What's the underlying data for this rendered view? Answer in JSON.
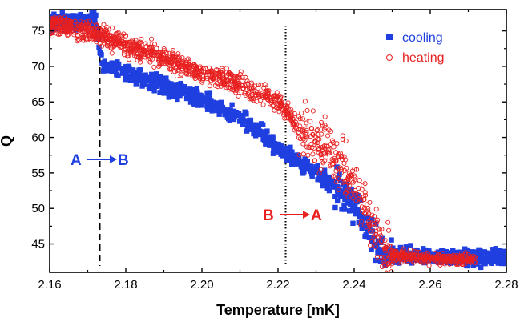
{
  "chart_data": {
    "type": "scatter",
    "title": "",
    "xlabel": "Temperature [mK]",
    "ylabel": "Q",
    "xlim": [
      2.16,
      2.28
    ],
    "ylim": [
      41,
      78
    ],
    "xticks": [
      2.16,
      2.18,
      2.2,
      2.22,
      2.24,
      2.26,
      2.28
    ],
    "xtick_labels": [
      "2.16",
      "2.18",
      "2.20",
      "2.22",
      "2.24",
      "2.26",
      "2.28"
    ],
    "yticks": [
      45,
      50,
      55,
      60,
      65,
      70,
      75
    ],
    "ytick_labels": [
      "45",
      "50",
      "55",
      "60",
      "65",
      "70",
      "75"
    ],
    "legend_position": "top-right",
    "series": [
      {
        "name": "cooling",
        "marker": "filled-square",
        "color": "#1f3fe0",
        "x": [
          2.16,
          2.165,
          2.17,
          2.172,
          2.173,
          2.174,
          2.18,
          2.19,
          2.2,
          2.205,
          2.21,
          2.215,
          2.22,
          2.225,
          2.23,
          2.235,
          2.24,
          2.243,
          2.245,
          2.247,
          2.25,
          2.26,
          2.27,
          2.28
        ],
        "y": [
          76.0,
          76.3,
          76.6,
          76.4,
          73.0,
          70.2,
          69.0,
          67.2,
          65.4,
          64.0,
          62.6,
          61.0,
          58.4,
          56.6,
          55.0,
          53.2,
          50.5,
          48.0,
          45.5,
          44.2,
          43.6,
          43.3,
          43.2,
          43.0
        ]
      },
      {
        "name": "heating",
        "marker": "open-circle",
        "color": "#e82020",
        "x": [
          2.16,
          2.17,
          2.18,
          2.19,
          2.2,
          2.21,
          2.215,
          2.22,
          2.222,
          2.225,
          2.23,
          2.235,
          2.24,
          2.243,
          2.246,
          2.248,
          2.25,
          2.26,
          2.27
        ],
        "y": [
          76.0,
          74.9,
          73.0,
          71.2,
          69.2,
          67.3,
          66.3,
          65.2,
          64.0,
          61.5,
          59.5,
          57.0,
          53.5,
          50.0,
          46.0,
          43.8,
          43.4,
          43.0,
          42.8
        ]
      }
    ],
    "reference_lines": [
      {
        "name": "A-to-B line",
        "x": 2.1732,
        "style": "dashed"
      },
      {
        "name": "B-to-A line",
        "x": 2.222,
        "style": "dotted"
      }
    ],
    "annotations": [
      {
        "id": "a_to_b",
        "from": "A",
        "to": "B",
        "color": "#1f3fe0",
        "x_data": 2.17,
        "y_data": 57.1
      },
      {
        "id": "b_to_a",
        "from": "B",
        "to": "A",
        "color": "#e82020",
        "x_data": 2.22,
        "y_data": 48.0
      }
    ]
  }
}
